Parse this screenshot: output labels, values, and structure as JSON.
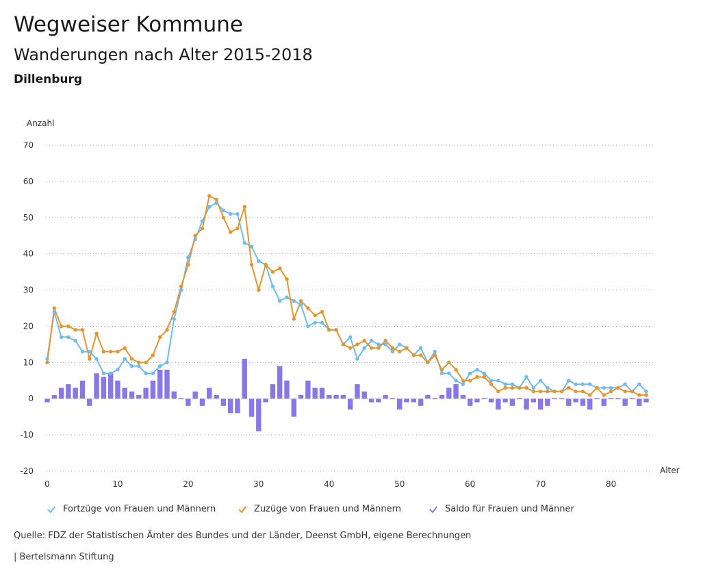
{
  "header": {
    "title": "Wegweiser Kommune",
    "subtitle": "Wanderungen nach Alter 2015-2018",
    "region": "Dillenburg"
  },
  "footer": {
    "source": "Quelle: FDZ der Statistischen Ämter des Bundes und der Länder, Deenst GmbH, eigene Berechnungen",
    "brand": "| Bertelsmann Stiftung"
  },
  "colors": {
    "fortzuege": "#6cbcf0",
    "zuzuege": "#e8942c",
    "saldo": "#8878e6",
    "grid": "#aaaaaa",
    "text": "#333333"
  },
  "chart_data": {
    "type": "line",
    "title": "Wanderungen nach Alter 2015-2018",
    "xlabel": "Alter",
    "ylabel": "Anzahl",
    "xlim": [
      0,
      85
    ],
    "ylim": [
      -20,
      70
    ],
    "x_ticks": [
      0,
      10,
      20,
      30,
      40,
      50,
      60,
      70,
      80
    ],
    "y_ticks": [
      -20,
      -10,
      0,
      10,
      20,
      30,
      40,
      50,
      60,
      70
    ],
    "x": [
      0,
      1,
      2,
      3,
      4,
      5,
      6,
      7,
      8,
      9,
      10,
      11,
      12,
      13,
      14,
      15,
      16,
      17,
      18,
      19,
      20,
      21,
      22,
      23,
      24,
      25,
      26,
      27,
      28,
      29,
      30,
      31,
      32,
      33,
      34,
      35,
      36,
      37,
      38,
      39,
      40,
      41,
      42,
      43,
      44,
      45,
      46,
      47,
      48,
      49,
      50,
      51,
      52,
      53,
      54,
      55,
      56,
      57,
      58,
      59,
      60,
      61,
      62,
      63,
      64,
      65,
      66,
      67,
      68,
      69,
      70,
      71,
      72,
      73,
      74,
      75,
      76,
      77,
      78,
      79,
      80,
      81,
      82,
      83,
      84,
      85
    ],
    "series": [
      {
        "name": "Fortzüge von Frauen und Männern",
        "type": "line",
        "color": "#6cbcf0",
        "values": [
          11,
          24,
          17,
          17,
          16,
          13,
          13,
          11,
          7,
          7,
          8,
          11,
          9,
          9,
          7,
          7,
          9,
          10,
          22,
          30,
          39,
          44,
          49,
          53,
          54,
          52,
          51,
          51,
          43,
          42,
          38,
          37,
          31,
          27,
          28,
          27,
          26,
          20,
          21,
          21,
          19,
          19,
          15,
          17,
          11,
          14,
          16,
          15,
          15,
          13,
          15,
          14,
          12,
          14,
          10,
          13,
          7,
          7,
          5,
          4,
          7,
          8,
          7,
          5,
          5,
          4,
          4,
          3,
          6,
          3,
          5,
          3,
          2,
          2,
          5,
          4,
          4,
          4,
          3,
          3,
          3,
          3,
          4,
          2,
          4,
          2
        ]
      },
      {
        "name": "Zuzüge von Frauen und Männern",
        "type": "line",
        "color": "#e8942c",
        "values": [
          10,
          25,
          20,
          20,
          19,
          19,
          11,
          18,
          13,
          13,
          13,
          14,
          11,
          10,
          10,
          12,
          17,
          19,
          24,
          31,
          37,
          45,
          47,
          56,
          55,
          50,
          46,
          47,
          53,
          37,
          30,
          37,
          35,
          36,
          33,
          22,
          27,
          25,
          23,
          24,
          19,
          19,
          15,
          14,
          15,
          16,
          14,
          14,
          16,
          14,
          13,
          14,
          12,
          12,
          10,
          12,
          8,
          10,
          8,
          5,
          5,
          6,
          6,
          4,
          2,
          3,
          3,
          3,
          3,
          2,
          2,
          2,
          2,
          2,
          3,
          2,
          2,
          1,
          3,
          1,
          2,
          3,
          2,
          2,
          1,
          1
        ]
      },
      {
        "name": "Saldo für Frauen und Männer",
        "type": "bar",
        "color": "#8878e6",
        "values": [
          -1,
          1,
          3,
          4,
          3,
          5,
          -2,
          7,
          6,
          7,
          5,
          3,
          2,
          1,
          3,
          5,
          8,
          8,
          2,
          0,
          -2,
          2,
          -2,
          3,
          1,
          -2,
          -4,
          -4,
          11,
          -5,
          -9,
          -1,
          4,
          9,
          5,
          -5,
          1,
          5,
          3,
          3,
          1,
          1,
          1,
          -3,
          4,
          2,
          -1,
          -1,
          1,
          0,
          -3,
          -1,
          -1,
          -2,
          1,
          0,
          1,
          3,
          4,
          1,
          -2,
          -1,
          0,
          -1,
          -3,
          -1,
          -2,
          0,
          -3,
          -1,
          -3,
          -2,
          0,
          0,
          -2,
          -1,
          -2,
          -3,
          0,
          -2,
          0,
          0,
          -2,
          0,
          -2,
          -1
        ]
      }
    ],
    "legend": [
      "Fortzüge von Frauen und Männern",
      "Zuzüge von Frauen und Männern",
      "Saldo für Frauen und Männer"
    ],
    "legend_position": "bottom"
  }
}
